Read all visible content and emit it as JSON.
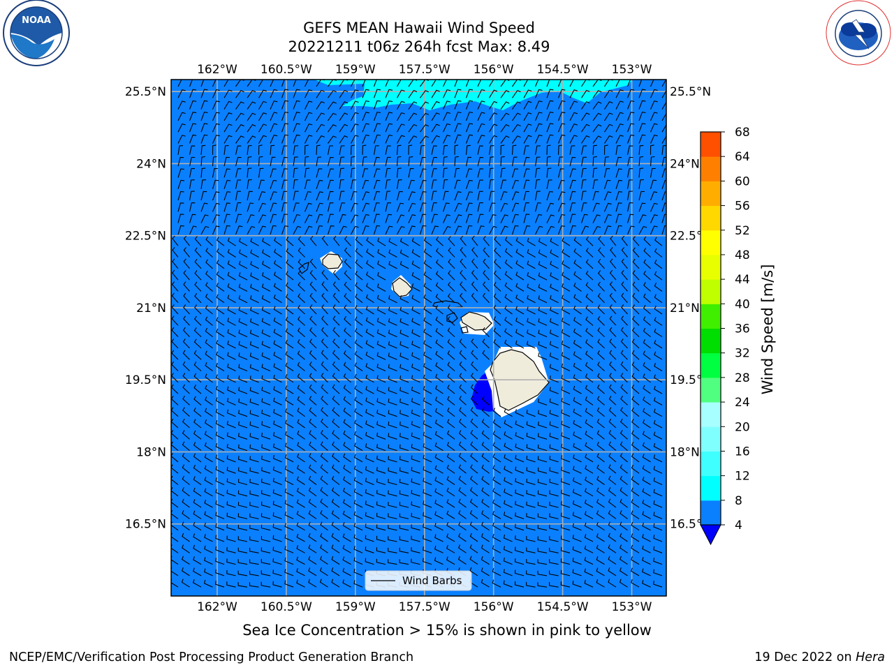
{
  "header": {
    "title_line1": "GEFS MEAN Hawaii Wind Speed",
    "title_line2": "20221211 t06z 264h fcst   Max: 8.49"
  },
  "logos": {
    "left": {
      "icon": "noaa-logo",
      "text": "NOAA",
      "ring_text": "NATIONAL OCEANIC AND ATMOSPHERIC ADMINISTRATION · U.S. DEPARTMENT OF COMMERCE"
    },
    "right": {
      "icon": "nws-logo",
      "ring_text": "NATIONAL WEATHER SERVICE"
    }
  },
  "map": {
    "lon_ticks": [
      "162°W",
      "160.5°W",
      "159°W",
      "157.5°W",
      "156°W",
      "154.5°W",
      "153°W"
    ],
    "lon_values": [
      -162,
      -160.5,
      -159,
      -157.5,
      -156,
      -154.5,
      -153
    ],
    "lat_ticks": [
      "25.5°N",
      "24°N",
      "22.5°N",
      "21°N",
      "19.5°N",
      "18°N",
      "16.5°N"
    ],
    "lat_values": [
      25.5,
      24,
      22.5,
      21,
      19.5,
      18,
      16.5
    ],
    "lon_range": [
      -163,
      -152.25
    ],
    "lat_range": [
      15.0,
      25.75
    ],
    "grid": true,
    "legend": {
      "label": "Wind Barbs",
      "placement": "bottom-center"
    },
    "ocean_color": "#0a80ff",
    "land_color": "#efecdc"
  },
  "colorbar": {
    "label": "Wind Speed [m/s]",
    "ticks": [
      "68",
      "64",
      "60",
      "56",
      "52",
      "48",
      "44",
      "40",
      "36",
      "32",
      "28",
      "24",
      "20",
      "16",
      "12",
      "8",
      "4"
    ],
    "levels": [
      4,
      8,
      12,
      16,
      20,
      24,
      28,
      32,
      36,
      40,
      44,
      48,
      52,
      56,
      60,
      64,
      68
    ],
    "colors": [
      "#0a80ff",
      "#00ffff",
      "#40ffff",
      "#80ffff",
      "#a8ffff",
      "#50ff80",
      "#00ff40",
      "#00dd00",
      "#40ee00",
      "#c0ff00",
      "#e8ff00",
      "#ffff00",
      "#ffd800",
      "#ffae00",
      "#ff8000",
      "#ff5000",
      "#ff2000",
      "#ff0000"
    ],
    "under_color": "#0000ff"
  },
  "footer": {
    "caption": "Sea Ice Concentration > 15% is shown in pink to yellow",
    "left": "NCEP/EMC/Verification Post Processing Product Generation Branch",
    "right_prefix": "19 Dec 2022 on ",
    "right_host": "Hera"
  }
}
